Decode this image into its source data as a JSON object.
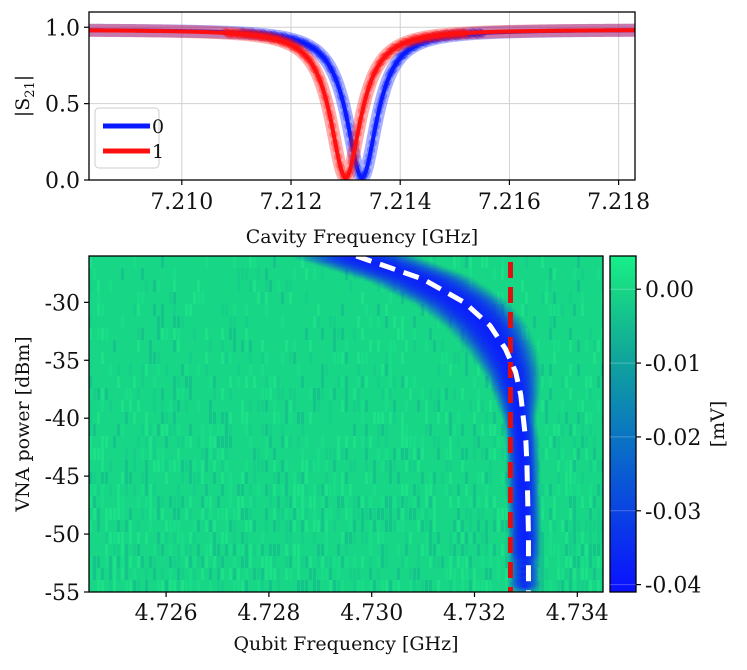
{
  "chart_data": [
    {
      "type": "line",
      "title": "",
      "xlabel": "Cavity Frequency [GHz]",
      "ylabel": "|S21|",
      "ylabel_main": "|S",
      "ylabel_sub": "21",
      "ylabel_close": "|",
      "xlim": [
        7.2083,
        7.2183
      ],
      "ylim": [
        0.0,
        1.1
      ],
      "xticks": [
        7.21,
        7.212,
        7.214,
        7.216,
        7.218
      ],
      "xtick_labels": [
        "7.210",
        "7.212",
        "7.214",
        "7.216",
        "7.218"
      ],
      "yticks": [
        0.0,
        0.5,
        1.0
      ],
      "ytick_labels": [
        "0.0",
        "0.5",
        "1.0"
      ],
      "grid": true,
      "legend_placement": "lower-left",
      "series": [
        {
          "name": "0",
          "color": "#0a1aff",
          "center": 7.2133,
          "linewidth": 0.00034,
          "depth": 0.985,
          "x": [
            7.2083,
            7.2093,
            7.2103,
            7.2113,
            7.2123,
            7.2128,
            7.213,
            7.2132,
            7.2133,
            7.2134,
            7.2136,
            7.2138,
            7.2143,
            7.2153,
            7.2163,
            7.2173,
            7.2183
          ],
          "values": [
            0.985,
            0.982,
            0.973,
            0.938,
            0.72,
            0.35,
            0.2,
            0.055,
            0.015,
            0.055,
            0.2,
            0.35,
            0.72,
            0.938,
            0.973,
            0.982,
            0.985
          ]
        },
        {
          "name": "1",
          "color": "#ff1010",
          "center": 7.213,
          "linewidth": 0.00034,
          "depth": 0.985,
          "x": [
            7.2083,
            7.2093,
            7.2103,
            7.2113,
            7.212,
            7.2125,
            7.2127,
            7.2129,
            7.213,
            7.2131,
            7.2133,
            7.2135,
            7.214,
            7.215,
            7.216,
            7.217,
            7.2183
          ],
          "values": [
            0.985,
            0.98,
            0.968,
            0.92,
            0.72,
            0.35,
            0.2,
            0.055,
            0.015,
            0.055,
            0.2,
            0.35,
            0.72,
            0.938,
            0.973,
            0.982,
            0.987
          ]
        }
      ]
    },
    {
      "type": "heatmap",
      "title": "",
      "xlabel": "Qubit Frequency [GHz]",
      "ylabel": "VNA power [dBm]",
      "xlim": [
        4.7245,
        4.7345
      ],
      "ylim": [
        -55,
        -26
      ],
      "xticks": [
        4.726,
        4.728,
        4.73,
        4.732,
        4.734
      ],
      "xtick_labels": [
        "4.726",
        "4.728",
        "4.730",
        "4.732",
        "4.734"
      ],
      "yticks": [
        -30,
        -35,
        -40,
        -45,
        -50,
        -55
      ],
      "ytick_labels": [
        "-30",
        "-35",
        "-40",
        "-45",
        "-50",
        "-55"
      ],
      "colorbar": {
        "label": "[mV]",
        "range": [
          -0.041,
          0.0045
        ],
        "ticks": [
          0.0,
          -0.01,
          -0.02,
          -0.03,
          -0.04
        ],
        "tick_labels": [
          "0.00",
          "-0.01",
          "-0.02",
          "-0.03",
          "-0.04"
        ],
        "colors": [
          "#0a10ff",
          "#0a3ae8",
          "#0a72c4",
          "#10a69a",
          "#17d685",
          "#17f08a"
        ]
      },
      "background_value": -0.0012,
      "dip_value": -0.036,
      "white_dashed_curve": {
        "color": "#ffffff",
        "power": [
          -26,
          -28,
          -30,
          -32,
          -34,
          -36,
          -38,
          -40,
          -42,
          -44,
          -46,
          -48,
          -50,
          -52,
          -55
        ],
        "frequency": [
          4.7297,
          4.731,
          4.7318,
          4.7323,
          4.7326,
          4.7328,
          4.7329,
          4.73295,
          4.733,
          4.73302,
          4.73303,
          4.73304,
          4.73305,
          4.73305,
          4.73305
        ]
      },
      "red_dashed_line": {
        "color": "#e01010",
        "frequency": 4.7327
      }
    }
  ]
}
